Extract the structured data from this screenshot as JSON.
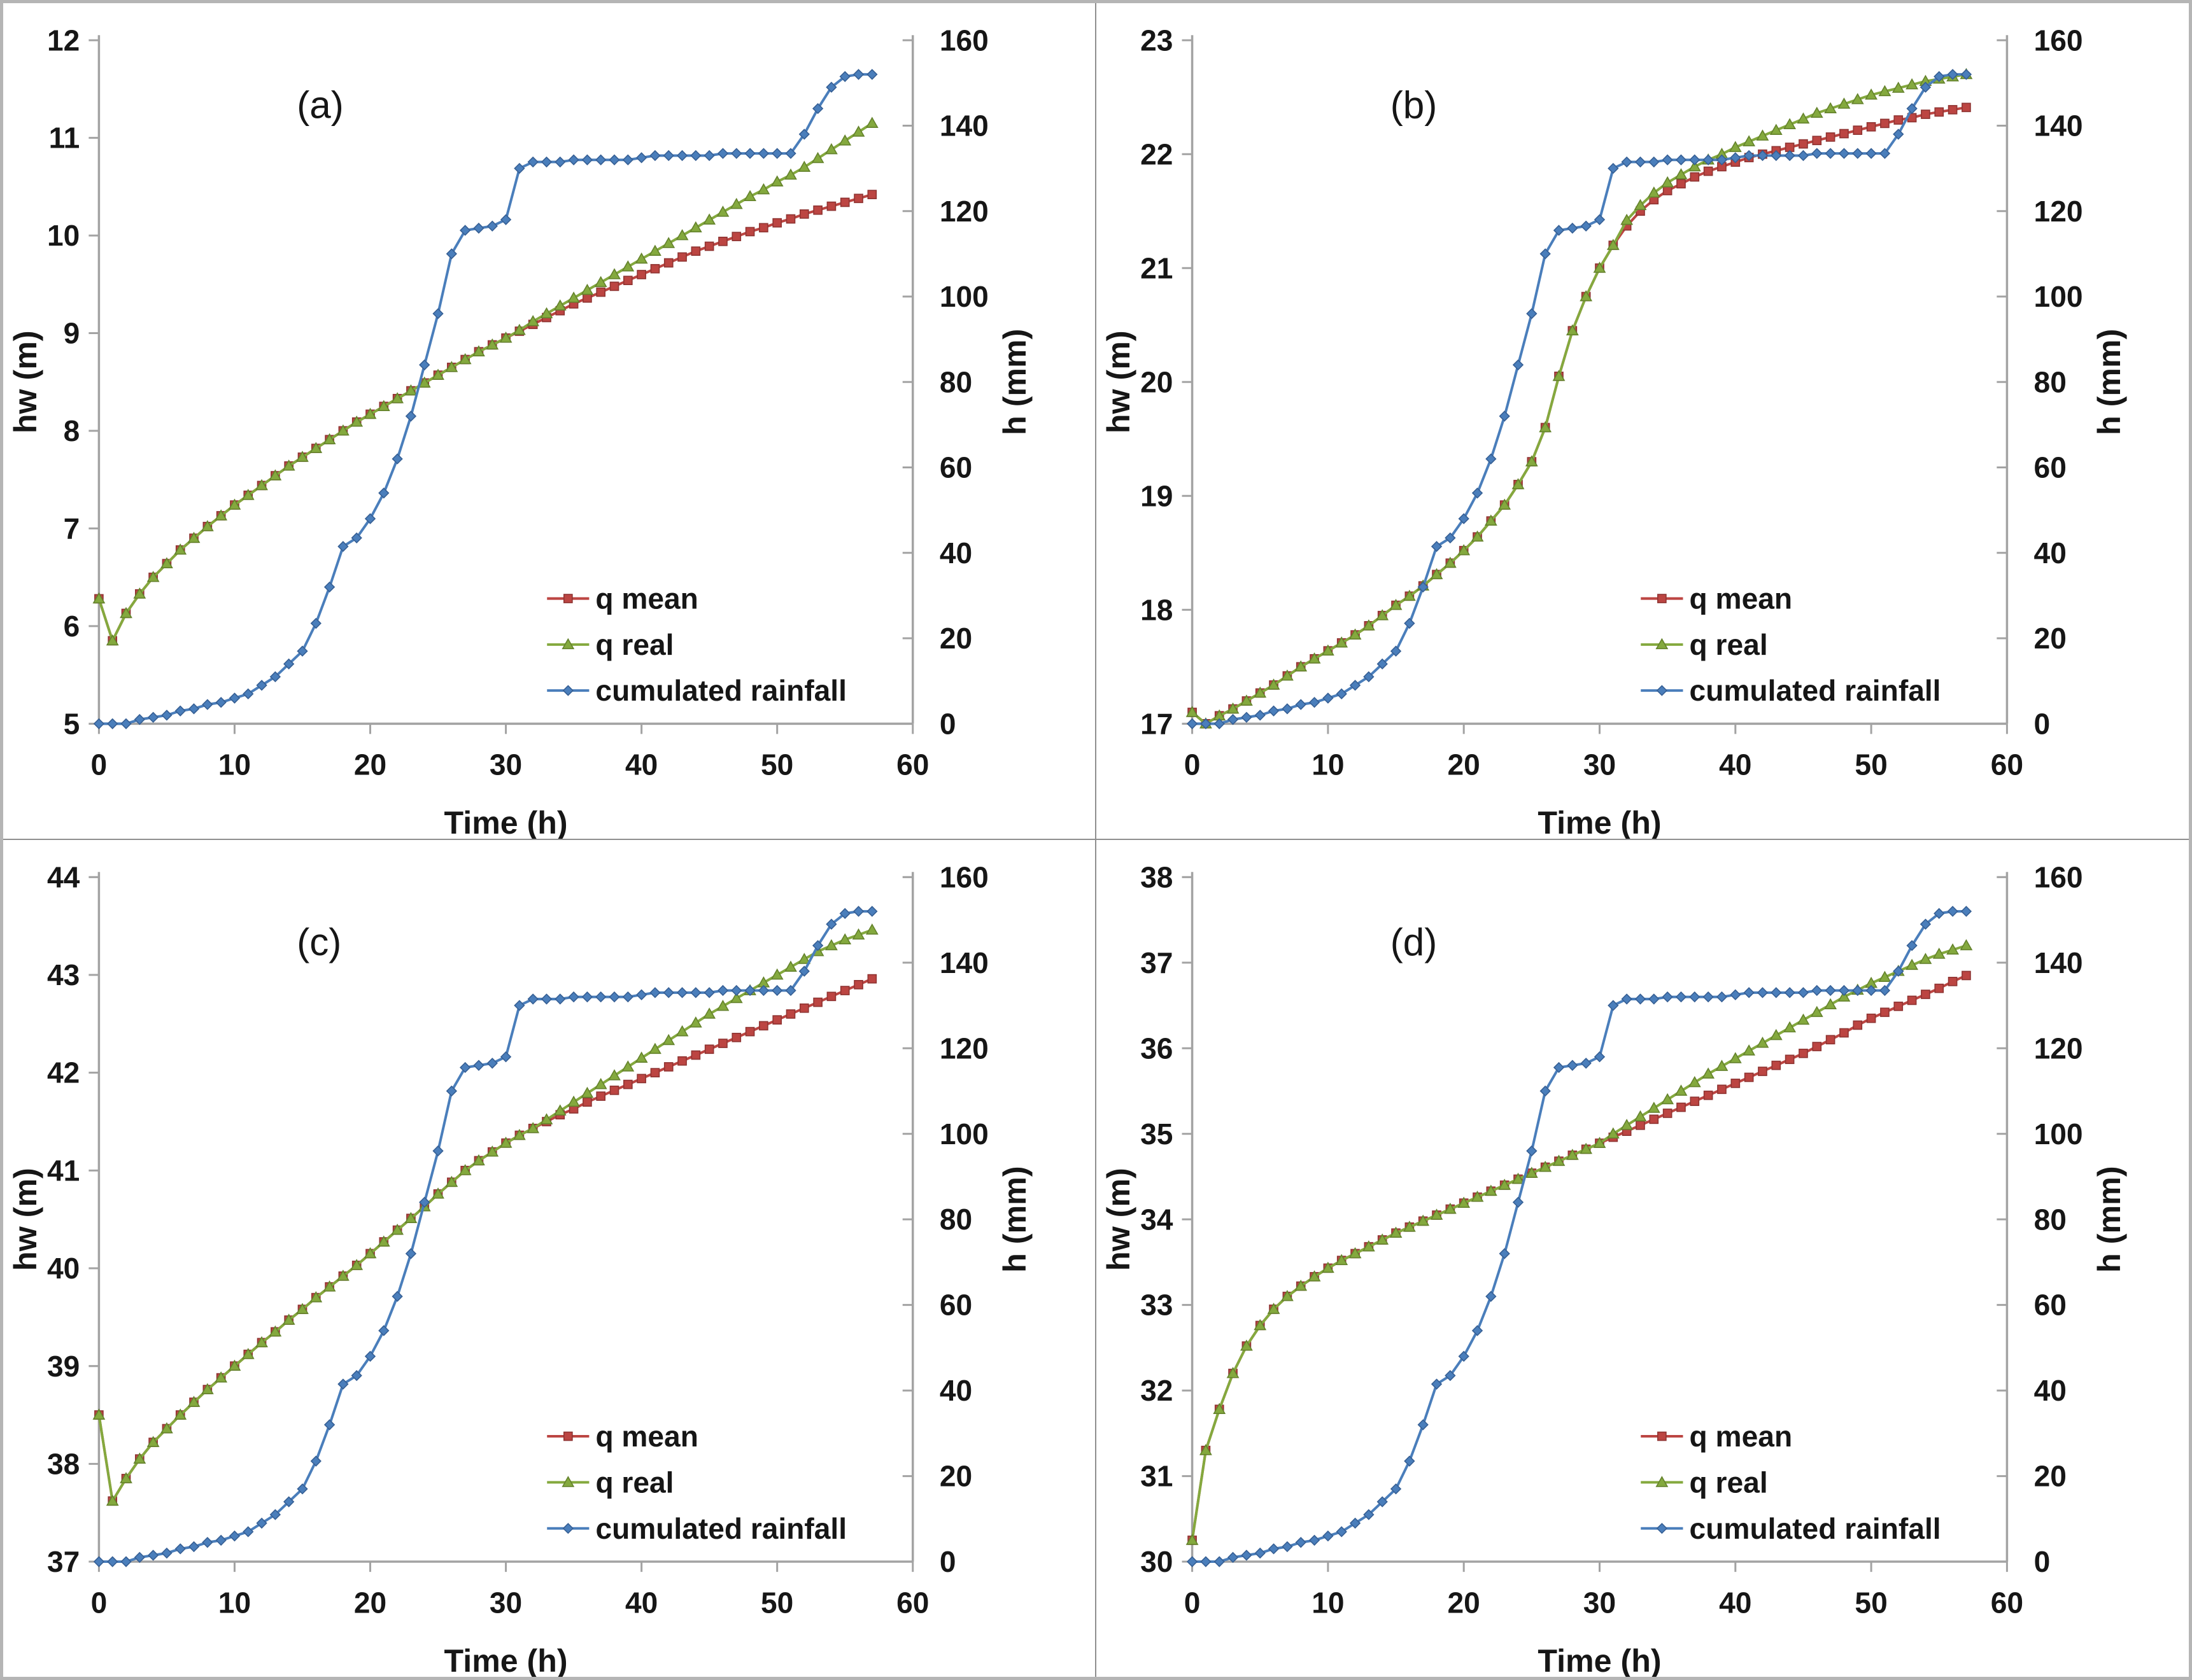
{
  "figure": {
    "background": "#ffffff",
    "border_color": "#b5b5b5",
    "divider_color": "#8f8f8f",
    "axis_color": "#a3a3a3",
    "text_color": "#161616"
  },
  "chart_data": [
    {
      "id": "a",
      "panel_label": "(a)",
      "type": "line",
      "xlabel": "Time (h)",
      "ylabel_left": "hw (m)",
      "ylabel_right": "h (mm)",
      "x_start": 0,
      "x_step": 1,
      "xlim": [
        0,
        60
      ],
      "xticks": [
        0,
        10,
        20,
        30,
        40,
        50,
        60
      ],
      "ylim_left": [
        5,
        12
      ],
      "yticks_left": [
        5,
        6,
        7,
        8,
        9,
        10,
        11,
        12
      ],
      "ylim_right": [
        0,
        160
      ],
      "yticks_right": [
        0,
        20,
        40,
        60,
        80,
        100,
        120,
        140,
        160
      ],
      "grid": false,
      "legend_position": "inside lower right",
      "series": [
        {
          "name": "q mean",
          "axis": "left",
          "color": "#bc4542",
          "marker": "square",
          "marker_stroke": "#8f3432",
          "values": [
            6.28,
            5.85,
            6.13,
            6.33,
            6.5,
            6.64,
            6.78,
            6.9,
            7.02,
            7.13,
            7.24,
            7.34,
            7.44,
            7.54,
            7.64,
            7.73,
            7.82,
            7.91,
            8.0,
            8.09,
            8.17,
            8.25,
            8.33,
            8.41,
            8.49,
            8.57,
            8.65,
            8.73,
            8.81,
            8.88,
            8.95,
            9.02,
            9.09,
            9.16,
            9.23,
            9.3,
            9.36,
            9.42,
            9.48,
            9.54,
            9.6,
            9.66,
            9.72,
            9.78,
            9.84,
            9.89,
            9.94,
            9.99,
            10.04,
            10.08,
            10.13,
            10.17,
            10.22,
            10.26,
            10.3,
            10.34,
            10.38,
            10.42
          ]
        },
        {
          "name": "q real",
          "axis": "left",
          "color": "#84a93e",
          "marker": "triangle",
          "marker_stroke": "#64822c",
          "values": [
            6.28,
            5.85,
            6.13,
            6.33,
            6.5,
            6.64,
            6.78,
            6.9,
            7.02,
            7.13,
            7.24,
            7.34,
            7.44,
            7.54,
            7.64,
            7.73,
            7.82,
            7.91,
            8.0,
            8.09,
            8.17,
            8.25,
            8.33,
            8.41,
            8.49,
            8.57,
            8.65,
            8.73,
            8.81,
            8.88,
            8.95,
            9.03,
            9.12,
            9.2,
            9.28,
            9.36,
            9.44,
            9.52,
            9.6,
            9.68,
            9.76,
            9.84,
            9.92,
            10.0,
            10.08,
            10.16,
            10.24,
            10.32,
            10.4,
            10.47,
            10.55,
            10.62,
            10.7,
            10.79,
            10.88,
            10.97,
            11.06,
            11.15
          ]
        },
        {
          "name": "cumulated rainfall",
          "axis": "right",
          "color": "#4a7ebb",
          "marker": "diamond",
          "marker_stroke": "#365f94",
          "values": [
            0,
            0,
            0,
            1,
            1.5,
            2,
            3,
            3.5,
            4.5,
            5,
            6,
            7,
            9,
            11,
            14,
            17,
            23.5,
            32,
            41.5,
            43.5,
            48,
            54,
            62,
            72,
            84,
            96,
            110,
            115.5,
            116,
            116.5,
            118,
            130,
            131.5,
            131.5,
            131.5,
            132,
            132,
            132,
            132,
            132,
            132.5,
            133,
            133,
            133,
            133,
            133,
            133.5,
            133.5,
            133.5,
            133.5,
            133.5,
            133.5,
            138,
            144,
            149,
            151.5,
            152,
            152
          ]
        }
      ]
    },
    {
      "id": "b",
      "panel_label": "(b)",
      "type": "line",
      "xlabel": "Time (h)",
      "ylabel_left": "hw (m)",
      "ylabel_right": "h (mm)",
      "x_start": 0,
      "x_step": 1,
      "xlim": [
        0,
        60
      ],
      "xticks": [
        0,
        10,
        20,
        30,
        40,
        50,
        60
      ],
      "ylim_left": [
        17,
        23
      ],
      "yticks_left": [
        17,
        18,
        19,
        20,
        21,
        22,
        23
      ],
      "ylim_right": [
        0,
        160
      ],
      "yticks_right": [
        0,
        20,
        40,
        60,
        80,
        100,
        120,
        140,
        160
      ],
      "grid": false,
      "legend_position": "inside lower right",
      "series": [
        {
          "name": "q mean",
          "axis": "left",
          "color": "#bc4542",
          "marker": "square",
          "marker_stroke": "#8f3432",
          "values": [
            17.1,
            17.0,
            17.07,
            17.13,
            17.2,
            17.27,
            17.34,
            17.42,
            17.5,
            17.57,
            17.64,
            17.71,
            17.78,
            17.86,
            17.95,
            18.04,
            18.12,
            18.21,
            18.31,
            18.41,
            18.52,
            18.64,
            18.78,
            18.92,
            19.1,
            19.3,
            19.6,
            20.05,
            20.45,
            20.75,
            21.0,
            21.2,
            21.37,
            21.5,
            21.6,
            21.68,
            21.74,
            21.8,
            21.85,
            21.89,
            21.93,
            21.97,
            22.0,
            22.03,
            22.06,
            22.09,
            22.12,
            22.15,
            22.18,
            22.21,
            22.24,
            22.27,
            22.3,
            22.32,
            22.35,
            22.37,
            22.39,
            22.41
          ]
        },
        {
          "name": "q real",
          "axis": "left",
          "color": "#84a93e",
          "marker": "triangle",
          "marker_stroke": "#64822c",
          "values": [
            17.1,
            17.0,
            17.07,
            17.13,
            17.2,
            17.27,
            17.34,
            17.42,
            17.5,
            17.57,
            17.64,
            17.71,
            17.78,
            17.86,
            17.95,
            18.04,
            18.12,
            18.21,
            18.31,
            18.41,
            18.52,
            18.64,
            18.78,
            18.92,
            19.1,
            19.3,
            19.6,
            20.05,
            20.45,
            20.75,
            21.0,
            21.2,
            21.42,
            21.55,
            21.66,
            21.75,
            21.82,
            21.89,
            21.95,
            22.0,
            22.06,
            22.11,
            22.16,
            22.21,
            22.26,
            22.31,
            22.36,
            22.4,
            22.44,
            22.48,
            22.52,
            22.55,
            22.58,
            22.61,
            22.64,
            22.66,
            22.68,
            22.7
          ]
        },
        {
          "name": "cumulated rainfall",
          "axis": "right",
          "color": "#4a7ebb",
          "marker": "diamond",
          "marker_stroke": "#365f94",
          "values": [
            0,
            0,
            0,
            1,
            1.5,
            2,
            3,
            3.5,
            4.5,
            5,
            6,
            7,
            9,
            11,
            14,
            17,
            23.5,
            32,
            41.5,
            43.5,
            48,
            54,
            62,
            72,
            84,
            96,
            110,
            115.5,
            116,
            116.5,
            118,
            130,
            131.5,
            131.5,
            131.5,
            132,
            132,
            132,
            132,
            132,
            132.5,
            133,
            133,
            133,
            133,
            133,
            133.5,
            133.5,
            133.5,
            133.5,
            133.5,
            133.5,
            138,
            144,
            149,
            151.5,
            152,
            152
          ]
        }
      ]
    },
    {
      "id": "c",
      "panel_label": "(c)",
      "type": "line",
      "xlabel": "Time (h)",
      "ylabel_left": "hw (m)",
      "ylabel_right": "h (mm)",
      "x_start": 0,
      "x_step": 1,
      "xlim": [
        0,
        60
      ],
      "xticks": [
        0,
        10,
        20,
        30,
        40,
        50,
        60
      ],
      "ylim_left": [
        37,
        44
      ],
      "yticks_left": [
        37,
        38,
        39,
        40,
        41,
        42,
        43,
        44
      ],
      "ylim_right": [
        0,
        160
      ],
      "yticks_right": [
        0,
        20,
        40,
        60,
        80,
        100,
        120,
        140,
        160
      ],
      "grid": false,
      "legend_position": "inside lower right",
      "series": [
        {
          "name": "q mean",
          "axis": "left",
          "color": "#bc4542",
          "marker": "square",
          "marker_stroke": "#8f3432",
          "values": [
            38.5,
            37.62,
            37.85,
            38.05,
            38.22,
            38.36,
            38.5,
            38.63,
            38.76,
            38.88,
            39.0,
            39.12,
            39.24,
            39.35,
            39.47,
            39.58,
            39.7,
            39.81,
            39.92,
            40.03,
            40.15,
            40.27,
            40.39,
            40.51,
            40.63,
            40.76,
            40.88,
            41.0,
            41.1,
            41.19,
            41.28,
            41.36,
            41.43,
            41.5,
            41.57,
            41.63,
            41.7,
            41.76,
            41.82,
            41.88,
            41.94,
            42.0,
            42.06,
            42.12,
            42.18,
            42.24,
            42.3,
            42.36,
            42.42,
            42.48,
            42.54,
            42.6,
            42.66,
            42.72,
            42.78,
            42.84,
            42.9,
            42.96
          ]
        },
        {
          "name": "q real",
          "axis": "left",
          "color": "#84a93e",
          "marker": "triangle",
          "marker_stroke": "#64822c",
          "values": [
            38.5,
            37.62,
            37.85,
            38.05,
            38.22,
            38.36,
            38.5,
            38.63,
            38.76,
            38.88,
            39.0,
            39.12,
            39.24,
            39.35,
            39.47,
            39.58,
            39.7,
            39.81,
            39.92,
            40.03,
            40.15,
            40.27,
            40.39,
            40.51,
            40.63,
            40.76,
            40.88,
            41.0,
            41.1,
            41.19,
            41.28,
            41.36,
            41.43,
            41.52,
            41.61,
            41.7,
            41.79,
            41.88,
            41.97,
            42.06,
            42.15,
            42.24,
            42.33,
            42.42,
            42.51,
            42.6,
            42.68,
            42.76,
            42.84,
            42.92,
            43.0,
            43.08,
            43.16,
            43.24,
            43.3,
            43.36,
            43.41,
            43.46
          ]
        },
        {
          "name": "cumulated rainfall",
          "axis": "right",
          "color": "#4a7ebb",
          "marker": "diamond",
          "marker_stroke": "#365f94",
          "values": [
            0,
            0,
            0,
            1,
            1.5,
            2,
            3,
            3.5,
            4.5,
            5,
            6,
            7,
            9,
            11,
            14,
            17,
            23.5,
            32,
            41.5,
            43.5,
            48,
            54,
            62,
            72,
            84,
            96,
            110,
            115.5,
            116,
            116.5,
            118,
            130,
            131.5,
            131.5,
            131.5,
            132,
            132,
            132,
            132,
            132,
            132.5,
            133,
            133,
            133,
            133,
            133,
            133.5,
            133.5,
            133.5,
            133.5,
            133.5,
            133.5,
            138,
            144,
            149,
            151.5,
            152,
            152
          ]
        }
      ]
    },
    {
      "id": "d",
      "panel_label": "(d)",
      "type": "line",
      "xlabel": "Time (h)",
      "ylabel_left": "hw (m)",
      "ylabel_right": "h (mm)",
      "x_start": 0,
      "x_step": 1,
      "xlim": [
        0,
        60
      ],
      "xticks": [
        0,
        10,
        20,
        30,
        40,
        50,
        60
      ],
      "ylim_left": [
        30,
        38
      ],
      "yticks_left": [
        30,
        31,
        32,
        33,
        34,
        35,
        36,
        37,
        38
      ],
      "ylim_right": [
        0,
        160
      ],
      "yticks_right": [
        0,
        20,
        40,
        60,
        80,
        100,
        120,
        140,
        160
      ],
      "grid": false,
      "legend_position": "inside lower right",
      "series": [
        {
          "name": "q mean",
          "axis": "left",
          "color": "#bc4542",
          "marker": "square",
          "marker_stroke": "#8f3432",
          "values": [
            30.25,
            31.3,
            31.78,
            32.2,
            32.52,
            32.76,
            32.95,
            33.1,
            33.22,
            33.33,
            33.43,
            33.52,
            33.6,
            33.68,
            33.76,
            33.84,
            33.91,
            33.98,
            34.05,
            34.12,
            34.19,
            34.26,
            34.33,
            34.4,
            34.47,
            34.54,
            34.61,
            34.68,
            34.75,
            34.82,
            34.89,
            34.96,
            35.03,
            35.1,
            35.17,
            35.24,
            35.31,
            35.38,
            35.45,
            35.52,
            35.59,
            35.66,
            35.73,
            35.8,
            35.87,
            35.94,
            36.02,
            36.1,
            36.18,
            36.27,
            36.35,
            36.42,
            36.49,
            36.56,
            36.63,
            36.7,
            36.78,
            36.85
          ]
        },
        {
          "name": "q real",
          "axis": "left",
          "color": "#84a93e",
          "marker": "triangle",
          "marker_stroke": "#64822c",
          "values": [
            30.25,
            31.3,
            31.78,
            32.2,
            32.52,
            32.76,
            32.95,
            33.1,
            33.22,
            33.33,
            33.43,
            33.52,
            33.6,
            33.68,
            33.76,
            33.84,
            33.91,
            33.98,
            34.05,
            34.12,
            34.19,
            34.26,
            34.33,
            34.4,
            34.47,
            34.54,
            34.61,
            34.68,
            34.75,
            34.82,
            34.89,
            35.0,
            35.1,
            35.2,
            35.3,
            35.4,
            35.5,
            35.6,
            35.7,
            35.79,
            35.88,
            35.97,
            36.06,
            36.15,
            36.24,
            36.33,
            36.42,
            36.51,
            36.6,
            36.68,
            36.76,
            36.83,
            36.9,
            36.97,
            37.04,
            37.1,
            37.15,
            37.2
          ]
        },
        {
          "name": "cumulated rainfall",
          "axis": "right",
          "color": "#4a7ebb",
          "marker": "diamond",
          "marker_stroke": "#365f94",
          "values": [
            0,
            0,
            0,
            1,
            1.5,
            2,
            3,
            3.5,
            4.5,
            5,
            6,
            7,
            9,
            11,
            14,
            17,
            23.5,
            32,
            41.5,
            43.5,
            48,
            54,
            62,
            72,
            84,
            96,
            110,
            115.5,
            116,
            116.5,
            118,
            130,
            131.5,
            131.5,
            131.5,
            132,
            132,
            132,
            132,
            132,
            132.5,
            133,
            133,
            133,
            133,
            133,
            133.5,
            133.5,
            133.5,
            133.5,
            133.5,
            133.5,
            138,
            144,
            149,
            151.5,
            152,
            152
          ]
        }
      ]
    }
  ]
}
